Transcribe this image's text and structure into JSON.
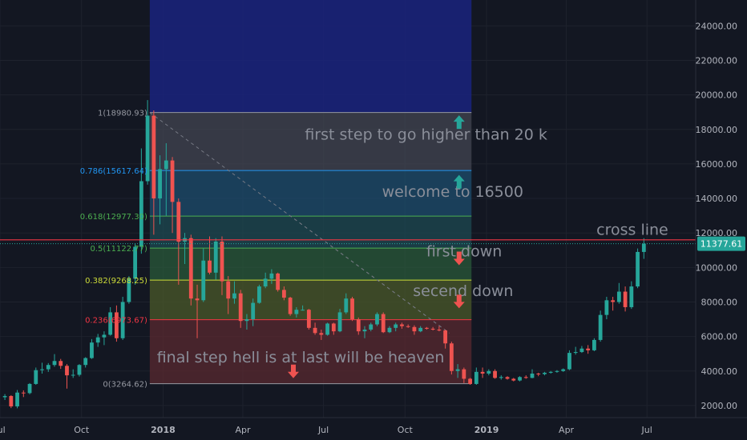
{
  "chart_data": {
    "type": "candlestick",
    "price_axis": {
      "min": 1300,
      "max": 25500,
      "ticks": [
        {
          "value": 2000,
          "label": "2000.00"
        },
        {
          "value": 4000,
          "label": "4000.00"
        },
        {
          "value": 6000,
          "label": "6000.00"
        },
        {
          "value": 8000,
          "label": "8000.00"
        },
        {
          "value": 10000,
          "label": "10000.00"
        },
        {
          "value": 12000,
          "label": "12000.00"
        },
        {
          "value": 14000,
          "label": "14000.00"
        },
        {
          "value": 16000,
          "label": "16000.00"
        },
        {
          "value": 18000,
          "label": "18000.00"
        },
        {
          "value": 20000,
          "label": "20000.00"
        },
        {
          "value": 22000,
          "label": "22000.00"
        },
        {
          "value": 24000,
          "label": "24000.00"
        }
      ]
    },
    "time_axis": {
      "start": "2017-07-01",
      "end": "2019-08-25",
      "ticks": [
        {
          "date": "2017-07-01",
          "label": "Jul",
          "major": false
        },
        {
          "date": "2017-10-01",
          "label": "Oct",
          "major": false
        },
        {
          "date": "2018-01-01",
          "label": "2018",
          "major": true
        },
        {
          "date": "2018-04-01",
          "label": "Apr",
          "major": false
        },
        {
          "date": "2018-07-01",
          "label": "Jul",
          "major": false
        },
        {
          "date": "2018-10-01",
          "label": "Oct",
          "major": false
        },
        {
          "date": "2019-01-01",
          "label": "2019",
          "major": true
        },
        {
          "date": "2019-04-01",
          "label": "Apr",
          "major": false
        },
        {
          "date": "2019-07-01",
          "label": "Jul",
          "major": false
        }
      ]
    },
    "last_price": {
      "value": 11377.61,
      "label": "11377.61"
    },
    "cross_line": {
      "value": 11600,
      "label": "cross line"
    },
    "fibonacci": {
      "start_date": "2017-12-17",
      "end_date": "2018-12-15",
      "levels": [
        {
          "ratio": 1,
          "price": 18980.93,
          "label": "1(18980.93)",
          "color": "#9598a1"
        },
        {
          "ratio": 0.786,
          "price": 15617.64,
          "label": "0.786(15617.64)",
          "color": "#2196f3"
        },
        {
          "ratio": 0.618,
          "price": 12977.3,
          "label": "0.618(12977.30)",
          "color": "#4caf50"
        },
        {
          "ratio": 0.5,
          "price": 11122.77,
          "label": "0.5(11122.77)",
          "color": "#4caf50"
        },
        {
          "ratio": 0.382,
          "price": 9268.25,
          "label": "0.382(9268.25)",
          "color": "#cddc39"
        },
        {
          "ratio": 0.236,
          "price": 6973.67,
          "label": "0.236(6973.67)",
          "color": "#f23645"
        },
        {
          "ratio": 0,
          "price": 3264.62,
          "label": "0(3264.62)",
          "color": "#9598a1"
        }
      ]
    },
    "annotations": [
      {
        "text": "first step to go higher than 20 k",
        "date": "2018-06-10",
        "price": 17400
      },
      {
        "text": "welcome to 16500",
        "date": "2018-09-05",
        "price": 14100
      },
      {
        "text": "cross line",
        "date": "2019-05-05",
        "price": 11900
      },
      {
        "text": "first down",
        "date": "2018-10-25",
        "price": 10650
      },
      {
        "text": "secend down",
        "date": "2018-10-10",
        "price": 8350
      },
      {
        "text": "final step  hell is at last will be heaven",
        "date": "2017-12-25",
        "price": 4500
      }
    ],
    "arrows": [
      {
        "direction": "up",
        "date": "2018-12-01",
        "price": 18400,
        "color": "#26a69a"
      },
      {
        "direction": "up",
        "date": "2018-12-01",
        "price": 14950,
        "color": "#26a69a"
      },
      {
        "direction": "down",
        "date": "2018-12-01",
        "price": 10550,
        "color": "#ef5350"
      },
      {
        "direction": "down",
        "date": "2018-12-01",
        "price": 8050,
        "color": "#ef5350"
      },
      {
        "direction": "down",
        "date": "2018-05-28",
        "price": 4000,
        "color": "#ef5350"
      }
    ],
    "trend_line": {
      "from": {
        "date": "2017-12-17",
        "price": 18980.93
      },
      "to": {
        "date": "2018-11-20",
        "price": 6200
      }
    },
    "candles": [
      {
        "date": "2017-07-03",
        "o": 2480,
        "h": 2660,
        "l": 2320,
        "c": 2550
      },
      {
        "date": "2017-07-10",
        "o": 2550,
        "h": 2600,
        "l": 1850,
        "c": 1950
      },
      {
        "date": "2017-07-17",
        "o": 1950,
        "h": 2900,
        "l": 1840,
        "c": 2750
      },
      {
        "date": "2017-07-24",
        "o": 2750,
        "h": 2880,
        "l": 2490,
        "c": 2720
      },
      {
        "date": "2017-07-31",
        "o": 2720,
        "h": 3300,
        "l": 2650,
        "c": 3250
      },
      {
        "date": "2017-08-07",
        "o": 3250,
        "h": 4200,
        "l": 3200,
        "c": 4050
      },
      {
        "date": "2017-08-14",
        "o": 4050,
        "h": 4480,
        "l": 3850,
        "c": 4100
      },
      {
        "date": "2017-08-21",
        "o": 4100,
        "h": 4460,
        "l": 3950,
        "c": 4350
      },
      {
        "date": "2017-08-28",
        "o": 4350,
        "h": 4980,
        "l": 4250,
        "c": 4580
      },
      {
        "date": "2017-09-04",
        "o": 4580,
        "h": 4700,
        "l": 4120,
        "c": 4300
      },
      {
        "date": "2017-09-11",
        "o": 4300,
        "h": 4400,
        "l": 2980,
        "c": 3750
      },
      {
        "date": "2017-09-18",
        "o": 3750,
        "h": 4100,
        "l": 3600,
        "c": 3780
      },
      {
        "date": "2017-09-25",
        "o": 3780,
        "h": 4400,
        "l": 3680,
        "c": 4350
      },
      {
        "date": "2017-10-02",
        "o": 4350,
        "h": 4800,
        "l": 4200,
        "c": 4750
      },
      {
        "date": "2017-10-09",
        "o": 4750,
        "h": 5850,
        "l": 4700,
        "c": 5650
      },
      {
        "date": "2017-10-16",
        "o": 5650,
        "h": 6150,
        "l": 5400,
        "c": 5950
      },
      {
        "date": "2017-10-23",
        "o": 5950,
        "h": 6300,
        "l": 5500,
        "c": 6100
      },
      {
        "date": "2017-10-30",
        "o": 6100,
        "h": 7700,
        "l": 6050,
        "c": 7400
      },
      {
        "date": "2017-11-06",
        "o": 7400,
        "h": 7800,
        "l": 5700,
        "c": 5900
      },
      {
        "date": "2017-11-13",
        "o": 5900,
        "h": 8300,
        "l": 5800,
        "c": 8000
      },
      {
        "date": "2017-11-20",
        "o": 8000,
        "h": 9500,
        "l": 7900,
        "c": 9350
      },
      {
        "date": "2017-11-27",
        "o": 9350,
        "h": 11400,
        "l": 9000,
        "c": 11200
      },
      {
        "date": "2017-12-04",
        "o": 11200,
        "h": 16900,
        "l": 10800,
        "c": 15000
      },
      {
        "date": "2017-12-11",
        "o": 15000,
        "h": 19700,
        "l": 14800,
        "c": 18800
      },
      {
        "date": "2017-12-18",
        "o": 18800,
        "h": 19100,
        "l": 11900,
        "c": 14000
      },
      {
        "date": "2017-12-25",
        "o": 14000,
        "h": 16500,
        "l": 12500,
        "c": 15700
      },
      {
        "date": "2018-01-01",
        "o": 15700,
        "h": 17200,
        "l": 13000,
        "c": 16200
      },
      {
        "date": "2018-01-08",
        "o": 16200,
        "h": 16400,
        "l": 12000,
        "c": 13800
      },
      {
        "date": "2018-01-15",
        "o": 13800,
        "h": 14000,
        "l": 9000,
        "c": 11500
      },
      {
        "date": "2018-01-22",
        "o": 11500,
        "h": 12000,
        "l": 10200,
        "c": 11700
      },
      {
        "date": "2018-01-29",
        "o": 11700,
        "h": 11900,
        "l": 7800,
        "c": 8200
      },
      {
        "date": "2018-02-05",
        "o": 8200,
        "h": 9000,
        "l": 5900,
        "c": 8100
      },
      {
        "date": "2018-02-12",
        "o": 8100,
        "h": 11100,
        "l": 8000,
        "c": 10400
      },
      {
        "date": "2018-02-19",
        "o": 10400,
        "h": 11800,
        "l": 9600,
        "c": 9700
      },
      {
        "date": "2018-02-26",
        "o": 9700,
        "h": 11700,
        "l": 9300,
        "c": 11500
      },
      {
        "date": "2018-03-05",
        "o": 11500,
        "h": 11800,
        "l": 8400,
        "c": 9200
      },
      {
        "date": "2018-03-12",
        "o": 9200,
        "h": 9500,
        "l": 7300,
        "c": 8200
      },
      {
        "date": "2018-03-19",
        "o": 8200,
        "h": 9200,
        "l": 7900,
        "c": 8500
      },
      {
        "date": "2018-03-26",
        "o": 8500,
        "h": 8700,
        "l": 6500,
        "c": 6900
      },
      {
        "date": "2018-04-02",
        "o": 6900,
        "h": 7300,
        "l": 6400,
        "c": 7000
      },
      {
        "date": "2018-04-09",
        "o": 7000,
        "h": 8200,
        "l": 6600,
        "c": 7950
      },
      {
        "date": "2018-04-16",
        "o": 7950,
        "h": 9000,
        "l": 7900,
        "c": 8900
      },
      {
        "date": "2018-04-23",
        "o": 8900,
        "h": 9700,
        "l": 8800,
        "c": 9350
      },
      {
        "date": "2018-04-30",
        "o": 9350,
        "h": 9900,
        "l": 9050,
        "c": 9650
      },
      {
        "date": "2018-05-07",
        "o": 9650,
        "h": 9700,
        "l": 8600,
        "c": 8700
      },
      {
        "date": "2018-05-14",
        "o": 8700,
        "h": 8900,
        "l": 8100,
        "c": 8250
      },
      {
        "date": "2018-05-21",
        "o": 8250,
        "h": 8300,
        "l": 7200,
        "c": 7300
      },
      {
        "date": "2018-05-28",
        "o": 7300,
        "h": 7700,
        "l": 7100,
        "c": 7550
      },
      {
        "date": "2018-06-04",
        "o": 7550,
        "h": 7800,
        "l": 7500,
        "c": 7550
      },
      {
        "date": "2018-06-11",
        "o": 7550,
        "h": 7600,
        "l": 6400,
        "c": 6500
      },
      {
        "date": "2018-06-18",
        "o": 6500,
        "h": 6800,
        "l": 6100,
        "c": 6200
      },
      {
        "date": "2018-06-25",
        "o": 6200,
        "h": 6400,
        "l": 5800,
        "c": 6100
      },
      {
        "date": "2018-07-02",
        "o": 6100,
        "h": 6800,
        "l": 6050,
        "c": 6750
      },
      {
        "date": "2018-07-09",
        "o": 6750,
        "h": 6800,
        "l": 6100,
        "c": 6300
      },
      {
        "date": "2018-07-16",
        "o": 6300,
        "h": 7600,
        "l": 6250,
        "c": 7400
      },
      {
        "date": "2018-07-23",
        "o": 7400,
        "h": 8500,
        "l": 7300,
        "c": 8200
      },
      {
        "date": "2018-07-30",
        "o": 8200,
        "h": 8300,
        "l": 6900,
        "c": 7000
      },
      {
        "date": "2018-08-06",
        "o": 7000,
        "h": 7100,
        "l": 6100,
        "c": 6300
      },
      {
        "date": "2018-08-13",
        "o": 6300,
        "h": 6600,
        "l": 5900,
        "c": 6400
      },
      {
        "date": "2018-08-20",
        "o": 6400,
        "h": 6800,
        "l": 6300,
        "c": 6700
      },
      {
        "date": "2018-08-27",
        "o": 6700,
        "h": 7400,
        "l": 6600,
        "c": 7300
      },
      {
        "date": "2018-09-03",
        "o": 7300,
        "h": 7400,
        "l": 6200,
        "c": 6250
      },
      {
        "date": "2018-09-10",
        "o": 6250,
        "h": 6600,
        "l": 6200,
        "c": 6500
      },
      {
        "date": "2018-09-17",
        "o": 6500,
        "h": 6800,
        "l": 6300,
        "c": 6700
      },
      {
        "date": "2018-09-24",
        "o": 6700,
        "h": 6800,
        "l": 6450,
        "c": 6600
      },
      {
        "date": "2018-10-01",
        "o": 6600,
        "h": 6700,
        "l": 6500,
        "c": 6550
      },
      {
        "date": "2018-10-08",
        "o": 6550,
        "h": 6650,
        "l": 6100,
        "c": 6300
      },
      {
        "date": "2018-10-15",
        "o": 6300,
        "h": 6600,
        "l": 6250,
        "c": 6500
      },
      {
        "date": "2018-10-22",
        "o": 6500,
        "h": 6550,
        "l": 6400,
        "c": 6450
      },
      {
        "date": "2018-10-29",
        "o": 6450,
        "h": 6550,
        "l": 6350,
        "c": 6400
      },
      {
        "date": "2018-11-05",
        "o": 6400,
        "h": 6600,
        "l": 6300,
        "c": 6350
      },
      {
        "date": "2018-11-12",
        "o": 6350,
        "h": 6400,
        "l": 5300,
        "c": 5600
      },
      {
        "date": "2018-11-19",
        "o": 5600,
        "h": 5700,
        "l": 3800,
        "c": 4000
      },
      {
        "date": "2018-11-26",
        "o": 4000,
        "h": 4400,
        "l": 3600,
        "c": 4100
      },
      {
        "date": "2018-12-03",
        "o": 4100,
        "h": 4200,
        "l": 3300,
        "c": 3550
      },
      {
        "date": "2018-12-10",
        "o": 3550,
        "h": 3600,
        "l": 3200,
        "c": 3250
      },
      {
        "date": "2018-12-17",
        "o": 3250,
        "h": 4200,
        "l": 3200,
        "c": 3950
      },
      {
        "date": "2018-12-24",
        "o": 3950,
        "h": 4200,
        "l": 3600,
        "c": 3850
      },
      {
        "date": "2018-12-31",
        "o": 3850,
        "h": 4100,
        "l": 3750,
        "c": 4000
      },
      {
        "date": "2019-01-07",
        "o": 4000,
        "h": 4100,
        "l": 3550,
        "c": 3600
      },
      {
        "date": "2019-01-14",
        "o": 3600,
        "h": 3750,
        "l": 3500,
        "c": 3650
      },
      {
        "date": "2019-01-21",
        "o": 3650,
        "h": 3700,
        "l": 3500,
        "c": 3550
      },
      {
        "date": "2019-01-28",
        "o": 3550,
        "h": 3600,
        "l": 3400,
        "c": 3450
      },
      {
        "date": "2019-02-04",
        "o": 3450,
        "h": 3700,
        "l": 3400,
        "c": 3650
      },
      {
        "date": "2019-02-11",
        "o": 3650,
        "h": 3750,
        "l": 3550,
        "c": 3600
      },
      {
        "date": "2019-02-18",
        "o": 3600,
        "h": 4100,
        "l": 3580,
        "c": 3850
      },
      {
        "date": "2019-02-25",
        "o": 3850,
        "h": 3900,
        "l": 3700,
        "c": 3820
      },
      {
        "date": "2019-03-04",
        "o": 3820,
        "h": 3950,
        "l": 3750,
        "c": 3900
      },
      {
        "date": "2019-03-11",
        "o": 3900,
        "h": 4000,
        "l": 3850,
        "c": 3950
      },
      {
        "date": "2019-03-18",
        "o": 3950,
        "h": 4050,
        "l": 3900,
        "c": 4000
      },
      {
        "date": "2019-03-25",
        "o": 4000,
        "h": 4150,
        "l": 3950,
        "c": 4100
      },
      {
        "date": "2019-04-01",
        "o": 4100,
        "h": 5200,
        "l": 4050,
        "c": 5050
      },
      {
        "date": "2019-04-08",
        "o": 5050,
        "h": 5400,
        "l": 4950,
        "c": 5100
      },
      {
        "date": "2019-04-15",
        "o": 5100,
        "h": 5450,
        "l": 5050,
        "c": 5300
      },
      {
        "date": "2019-04-22",
        "o": 5300,
        "h": 5500,
        "l": 5000,
        "c": 5200
      },
      {
        "date": "2019-04-29",
        "o": 5200,
        "h": 5900,
        "l": 5150,
        "c": 5800
      },
      {
        "date": "2019-05-06",
        "o": 5800,
        "h": 7500,
        "l": 5700,
        "c": 7250
      },
      {
        "date": "2019-05-13",
        "o": 7250,
        "h": 8300,
        "l": 7000,
        "c": 8100
      },
      {
        "date": "2019-05-20",
        "o": 8100,
        "h": 8300,
        "l": 7500,
        "c": 8000
      },
      {
        "date": "2019-05-27",
        "o": 8000,
        "h": 9100,
        "l": 7900,
        "c": 8600
      },
      {
        "date": "2019-06-03",
        "o": 8600,
        "h": 8900,
        "l": 7450,
        "c": 7700
      },
      {
        "date": "2019-06-10",
        "o": 7700,
        "h": 9200,
        "l": 7600,
        "c": 8900
      },
      {
        "date": "2019-06-17",
        "o": 8900,
        "h": 11100,
        "l": 8800,
        "c": 10900
      },
      {
        "date": "2019-06-24",
        "o": 10900,
        "h": 11700,
        "l": 10500,
        "c": 11377.61
      }
    ]
  }
}
